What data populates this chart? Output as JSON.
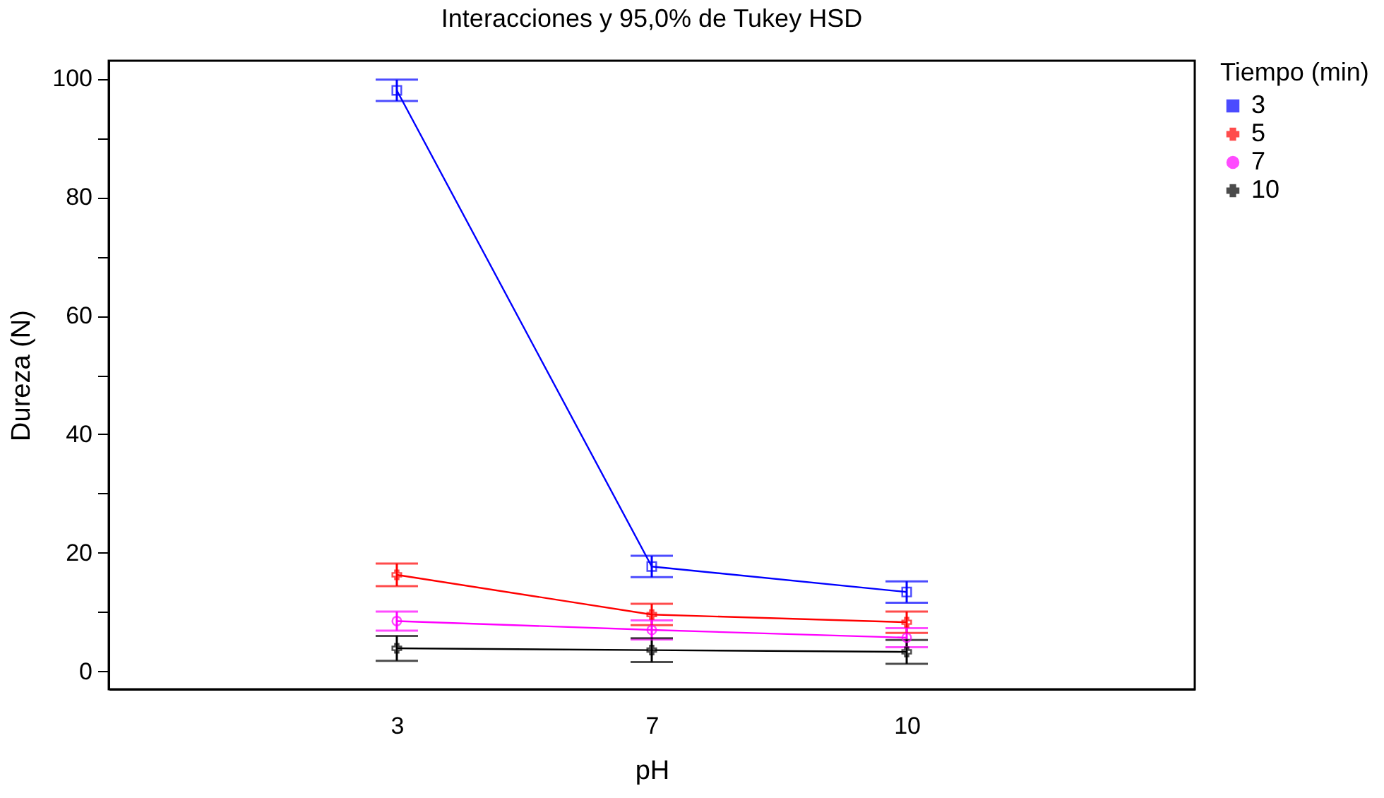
{
  "chart_data": {
    "type": "line",
    "title": "Interacciones y 95,0% de Tukey HSD",
    "xlabel": "pH",
    "ylabel": "Dureza (N)",
    "legend_title": "Tiempo (min)",
    "legend": "top right",
    "categories": [
      "3",
      "7",
      "10"
    ],
    "series": [
      {
        "name": "3",
        "color": "#0000ff",
        "marker": "square",
        "values": [
          98.0,
          17.7,
          13.4
        ],
        "errors": [
          1.8,
          1.8,
          1.8
        ]
      },
      {
        "name": "5",
        "color": "#ff0000",
        "marker": "cross",
        "values": [
          16.3,
          9.6,
          8.3
        ],
        "errors": [
          1.9,
          1.8,
          1.8
        ]
      },
      {
        "name": "7",
        "color": "#ff00ff",
        "marker": "circle",
        "values": [
          8.5,
          7.0,
          5.7
        ],
        "errors": [
          1.6,
          1.6,
          1.6
        ]
      },
      {
        "name": "10",
        "color": "#000000",
        "marker": "cross",
        "values": [
          3.9,
          3.6,
          3.3
        ],
        "errors": [
          2.1,
          2.0,
          2.0
        ]
      }
    ],
    "ylim": [
      -3,
      103
    ],
    "yticks": [
      0,
      {
        "value": 10,
        "label": null
      },
      20,
      {
        "value": 30,
        "label": null
      },
      40,
      {
        "value": 50,
        "label": null
      },
      60,
      {
        "value": 70,
        "label": null
      },
      80,
      {
        "value": 90,
        "label": null
      },
      100
    ],
    "grid": false
  }
}
